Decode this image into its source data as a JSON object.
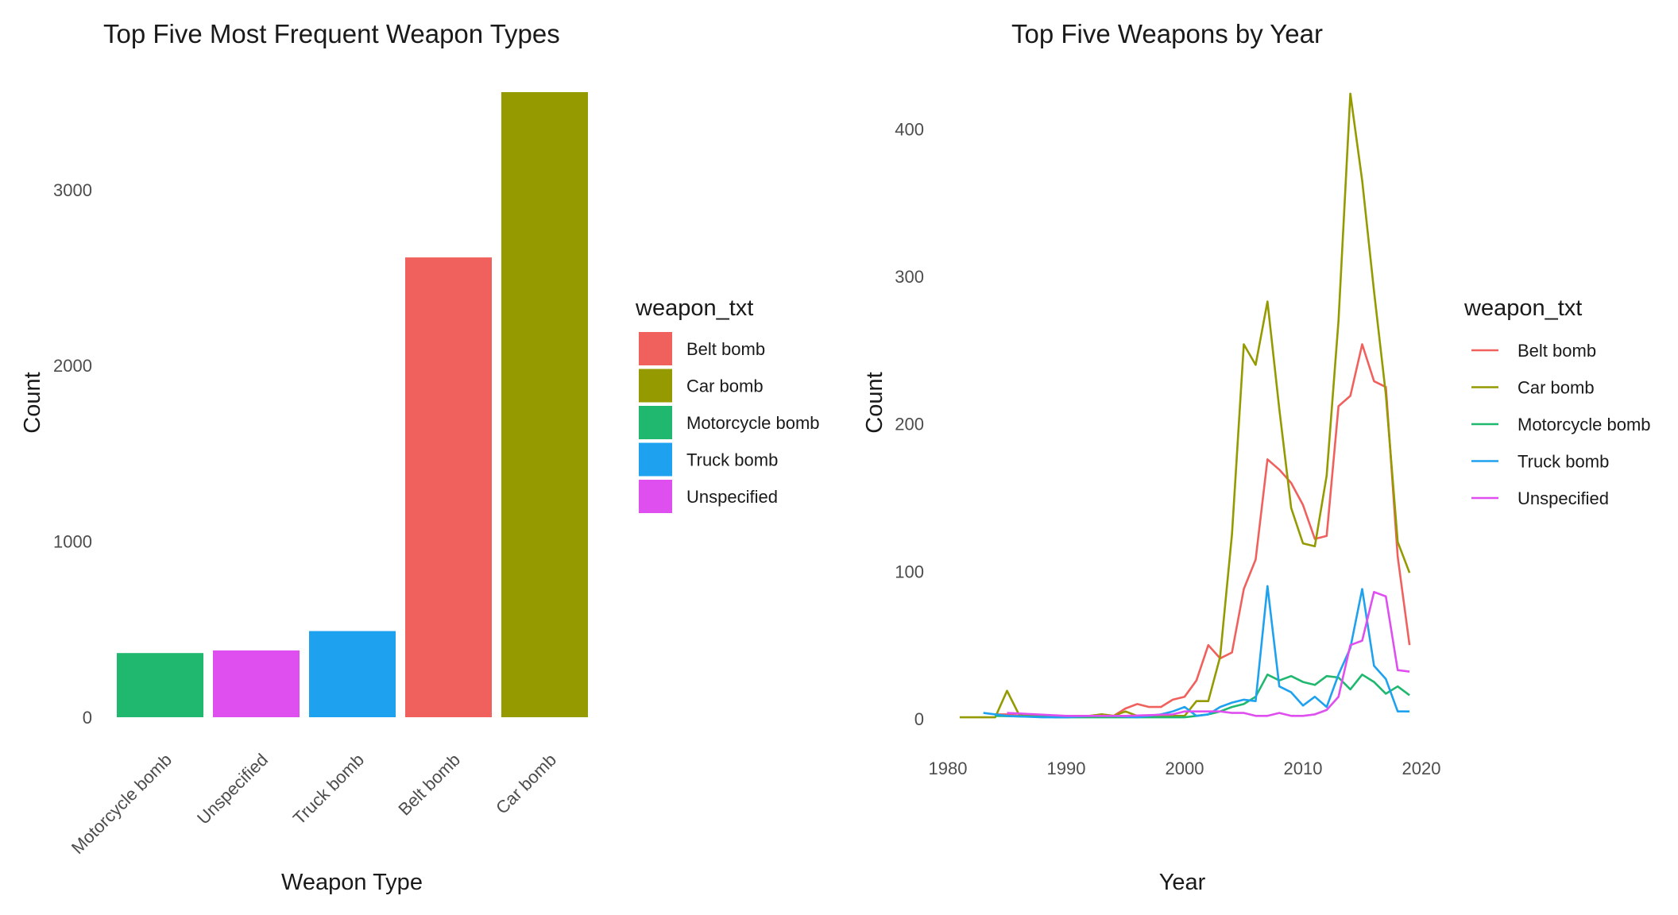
{
  "chart_data": [
    {
      "type": "bar",
      "title": "Top Five Most Frequent Weapon Types",
      "xlabel": "Weapon Type",
      "ylabel": "Count",
      "categories": [
        "Motorcycle bomb",
        "Unspecified",
        "Truck bomb",
        "Belt bomb",
        "Car bomb"
      ],
      "values": [
        365,
        380,
        490,
        2615,
        3555
      ],
      "colors": [
        "#1fb86e",
        "#df4ff0",
        "#1ea1ef",
        "#f0615d",
        "#949a00"
      ],
      "ylim": [
        0,
        3555
      ],
      "yticks": [
        0,
        1000,
        2000,
        3000
      ],
      "grid": false,
      "legend": {
        "title": "weapon_txt",
        "placement": "right",
        "entries": [
          {
            "label": "Belt bomb",
            "color": "#f0615d"
          },
          {
            "label": "Car bomb",
            "color": "#949a00"
          },
          {
            "label": "Motorcycle bomb",
            "color": "#1fb86e"
          },
          {
            "label": "Truck bomb",
            "color": "#1ea1ef"
          },
          {
            "label": "Unspecified",
            "color": "#df4ff0"
          }
        ]
      }
    },
    {
      "type": "line",
      "title": "Top Five Weapons by Year",
      "xlabel": "Year",
      "ylabel": "Count",
      "xlim": [
        1980,
        2020
      ],
      "ylim": [
        0,
        425
      ],
      "xticks": [
        1980,
        1990,
        2000,
        2010,
        2020
      ],
      "yticks": [
        0,
        100,
        200,
        300,
        400
      ],
      "grid": false,
      "series": [
        {
          "name": "Belt bomb",
          "color": "#f0615d",
          "x": [
            1984,
            1985,
            1986,
            1988,
            1990,
            1992,
            1993,
            1994,
            1995,
            1996,
            1997,
            1998,
            1999,
            2000,
            2001,
            2002,
            2003,
            2004,
            2005,
            2006,
            2007,
            2008,
            2009,
            2010,
            2011,
            2012,
            2013,
            2014,
            2015,
            2016,
            2017,
            2018,
            2019
          ],
          "y": [
            3,
            3,
            2,
            2,
            1,
            2,
            3,
            2,
            7,
            10,
            8,
            8,
            13,
            15,
            26,
            50,
            41,
            45,
            88,
            108,
            176,
            169,
            160,
            145,
            122,
            124,
            212,
            219,
            254,
            229,
            225,
            110,
            50
          ]
        },
        {
          "name": "Car bomb",
          "color": "#949a00",
          "x": [
            1981,
            1982,
            1983,
            1984,
            1985,
            1986,
            1987,
            1988,
            1989,
            1990,
            1991,
            1992,
            1993,
            1994,
            1995,
            1996,
            1997,
            1998,
            1999,
            2000,
            2001,
            2002,
            2003,
            2004,
            2005,
            2006,
            2007,
            2008,
            2009,
            2010,
            2011,
            2012,
            2013,
            2014,
            2015,
            2016,
            2017,
            2018,
            2019
          ],
          "y": [
            1,
            1,
            1,
            1,
            19,
            3,
            2,
            2,
            1,
            1,
            2,
            2,
            3,
            2,
            5,
            2,
            2,
            2,
            2,
            2,
            12,
            12,
            42,
            125,
            254,
            240,
            283,
            210,
            143,
            119,
            117,
            165,
            270,
            424,
            365,
            290,
            220,
            120,
            99
          ]
        },
        {
          "name": "Motorcycle bomb",
          "color": "#1fb86e",
          "x": [
            1984,
            1990,
            1995,
            2000,
            2001,
            2002,
            2003,
            2004,
            2005,
            2006,
            2007,
            2008,
            2009,
            2010,
            2011,
            2012,
            2013,
            2014,
            2015,
            2016,
            2017,
            2018,
            2019
          ],
          "y": [
            2,
            1,
            1,
            1,
            2,
            3,
            5,
            8,
            10,
            15,
            30,
            26,
            29,
            25,
            23,
            29,
            28,
            20,
            30,
            25,
            17,
            22,
            16
          ]
        },
        {
          "name": "Truck bomb",
          "color": "#1ea1ef",
          "x": [
            1983,
            1984,
            1985,
            1988,
            1990,
            1992,
            1994,
            1996,
            1998,
            1999,
            2000,
            2001,
            2002,
            2003,
            2004,
            2005,
            2006,
            2007,
            2008,
            2009,
            2010,
            2011,
            2012,
            2013,
            2014,
            2015,
            2016,
            2017,
            2018,
            2019
          ],
          "y": [
            4,
            3,
            2,
            1,
            1,
            2,
            2,
            1,
            3,
            5,
            8,
            2,
            3,
            8,
            11,
            13,
            12,
            90,
            22,
            18,
            9,
            15,
            8,
            30,
            48,
            88,
            36,
            27,
            5,
            5
          ]
        },
        {
          "name": "Unspecified",
          "color": "#df4ff0",
          "x": [
            1985,
            1990,
            1995,
            1999,
            2000,
            2001,
            2002,
            2003,
            2004,
            2005,
            2006,
            2007,
            2008,
            2009,
            2010,
            2011,
            2012,
            2013,
            2014,
            2015,
            2016,
            2017,
            2018,
            2019
          ],
          "y": [
            4,
            2,
            2,
            3,
            5,
            5,
            5,
            5,
            4,
            4,
            2,
            2,
            4,
            2,
            2,
            3,
            6,
            15,
            50,
            53,
            86,
            83,
            33,
            32
          ]
        }
      ],
      "legend": {
        "title": "weapon_txt",
        "placement": "right",
        "entries": [
          {
            "label": "Belt bomb",
            "color": "#f0615d"
          },
          {
            "label": "Car bomb",
            "color": "#949a00"
          },
          {
            "label": "Motorcycle bomb",
            "color": "#1fb86e"
          },
          {
            "label": "Truck bomb",
            "color": "#1ea1ef"
          },
          {
            "label": "Unspecified",
            "color": "#df4ff0"
          }
        ]
      }
    }
  ]
}
